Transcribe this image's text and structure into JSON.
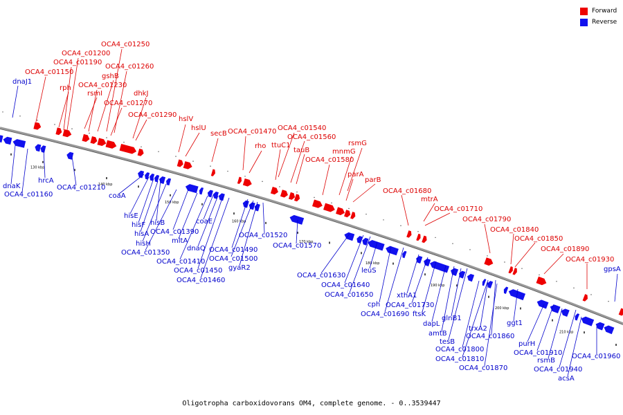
{
  "legend": {
    "forward_label": "Forward",
    "reverse_label": "Reverse",
    "forward_color": "#ee0000",
    "reverse_color": "#1111ee"
  },
  "caption": "Oligotropha carboxidovorans OM4, complete genome. - 0..3539447",
  "colors": {
    "backbone": "#999999",
    "text_forward": "#dd0000",
    "text_reverse": "#0000cc"
  },
  "scale_ticks": [
    "130 kbp",
    "140 kbp",
    "150 kbp",
    "160 kbp",
    "170 kbp",
    "180 kbp",
    "190 kbp",
    "200 kbp",
    "210 kbp"
  ],
  "forward_labels": [
    "OCA4_c01250",
    "OCA4_c01200",
    "OCA4_c01190",
    "OCA4_c01260",
    "OCA4_c01150",
    "gshB",
    "rph",
    "OCA4_c01230",
    "rsmI",
    "dhkJ",
    "OCA4_c01270",
    "OCA4_c01290",
    "hslV",
    "hslU",
    "secB",
    "OCA4_c01470",
    "OCA4_c01540",
    "ttuC1",
    "rho",
    "OCA4_c01560",
    "rsmG",
    "tauB",
    "mnmG",
    "OCA4_c01580",
    "parA",
    "parB",
    "OCA4_c01680",
    "mtrA",
    "OCA4_c01710",
    "OCA4_c01790",
    "OCA4_c01840",
    "OCA4_c01850",
    "OCA4_c01890",
    "OCA4_c01930"
  ],
  "reverse_labels": [
    "dnaJ1",
    "dnaK",
    "hrcA",
    "OCA4_c01160",
    "OCA4_c01210",
    "coaA",
    "hisE",
    "hisF",
    "hisB",
    "hisA",
    "hisH",
    "OCA4_c01390",
    "OCA4_c01350",
    "mltA",
    "coaE",
    "dnaQ",
    "OCA4_c01410",
    "OCA4_c01490",
    "OCA4_c01520",
    "OCA4_c01500",
    "OCA4_c01450",
    "gyaR2",
    "OCA4_c01460",
    "OCA4_c01570",
    "OCA4_c01630",
    "OCA4_c01640",
    "OCA4_c01650",
    "leuS",
    "cph",
    "OCA4_c01690",
    "xthA1",
    "OCA4_c01730",
    "ftsK",
    "glnB1",
    "dapL",
    "amtB",
    "tesB",
    "trxA2",
    "OCA4_c01860",
    "ggt1",
    "OCA4_c01800",
    "OCA4_c01810",
    "OCA4_c01870",
    "purH",
    "OCA4_c01910",
    "rsmB",
    "OCA4_c01940",
    "acsA",
    "OCA4_c01960",
    "gpsA"
  ]
}
